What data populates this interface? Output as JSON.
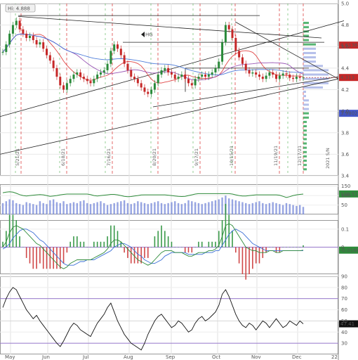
{
  "chart_data": {
    "type": "line",
    "x_axis": {
      "labels": [
        "May",
        "Jun",
        "Jul",
        "Aug",
        "Sep",
        "Oct",
        "Nov",
        "Dec",
        "22"
      ]
    },
    "price_panel": {
      "ylim": [
        3.4,
        5.0
      ],
      "y_ticks": [
        3.4,
        3.6,
        3.8,
        4.0,
        4.2,
        4.4,
        4.6,
        4.8,
        5.0
      ],
      "hi_label": "Hi: 4.888",
      "hi_value": 4.888,
      "hg_label": "HG",
      "hg_level": 4.64,
      "volume_profile_high_label": "4.6136",
      "last_price_label": "4.313",
      "volume_profile_low_label": "3.9802",
      "date_markers": [
        "5/21/21",
        "6/18/21",
        "7/16/21",
        "8/20/21",
        "9/17/21",
        "10/15/21",
        "11/19/21",
        "12/17/21"
      ],
      "faded_label": "2021 S/N",
      "close": [
        4.55,
        4.62,
        4.72,
        4.8,
        4.84,
        4.76,
        4.72,
        4.68,
        4.7,
        4.66,
        4.62,
        4.64,
        4.58,
        4.52,
        4.47,
        4.4,
        4.32,
        4.24,
        4.2,
        4.26,
        4.3,
        4.34,
        4.36,
        4.32,
        4.3,
        4.28,
        4.26,
        4.3,
        4.34,
        4.36,
        4.38,
        4.44,
        4.56,
        4.62,
        4.58,
        4.52,
        4.44,
        4.38,
        4.32,
        4.3,
        4.26,
        4.22,
        4.18,
        4.16,
        4.2,
        4.26,
        4.34,
        4.38,
        4.4,
        4.36,
        4.34,
        4.3,
        4.32,
        4.34,
        4.3,
        4.26,
        4.24,
        4.3,
        4.32,
        4.34,
        4.32,
        4.34,
        4.36,
        4.4,
        4.46,
        4.64,
        4.8,
        4.76,
        4.68,
        4.56,
        4.5,
        4.44,
        4.38,
        4.35,
        4.36,
        4.34,
        4.32,
        4.3,
        4.33,
        4.36,
        4.34,
        4.3,
        4.33,
        4.35,
        4.34,
        4.31,
        4.3,
        4.32,
        4.31,
        4.313
      ]
    },
    "volume_panel": {
      "y_ticks": [
        50,
        100,
        150
      ],
      "last_value_label": "108.51",
      "volume": [
        60,
        70,
        80,
        75,
        60,
        55,
        50,
        65,
        60,
        55,
        50,
        70,
        60,
        55,
        75,
        80,
        65,
        60,
        70,
        55,
        60,
        65,
        60,
        70,
        75,
        60,
        55,
        60,
        65,
        70,
        60,
        50,
        55,
        60,
        65,
        70,
        75,
        60,
        55,
        60,
        70,
        65,
        60,
        55,
        60,
        65,
        70,
        60,
        55,
        60,
        65,
        70,
        60,
        55,
        60,
        75,
        70,
        65,
        60,
        55,
        60,
        65,
        70,
        75,
        80,
        90,
        100,
        85,
        80,
        75,
        70,
        65,
        60,
        55,
        60,
        65,
        70,
        60,
        55,
        60,
        65,
        60,
        55,
        50,
        60,
        55,
        50,
        45,
        50,
        40
      ],
      "average": [
        115,
        118,
        120,
        118,
        112,
        105,
        100,
        98,
        100,
        102,
        104,
        105,
        104,
        100,
        96,
        98,
        100,
        104,
        106,
        108,
        108,
        108,
        108,
        108,
        108,
        108,
        105,
        100,
        98,
        100,
        102,
        104,
        106,
        106,
        104,
        100,
        96,
        94,
        95,
        98,
        100,
        103,
        104,
        104,
        104,
        104,
        104,
        104,
        104,
        102,
        100,
        98,
        96,
        95,
        96,
        100,
        104,
        108,
        110,
        110,
        110,
        110,
        110,
        110,
        110,
        110,
        110,
        110,
        108,
        104,
        100,
        98,
        98,
        100,
        102,
        104,
        104,
        104,
        104,
        104,
        104,
        104,
        102,
        96,
        90,
        94,
        100,
        104,
        106,
        108
      ]
    },
    "macd_panel": {
      "y_ticks": [
        0.1,
        0
      ],
      "last_value_label": "-0.0166",
      "macd": [
        0.0,
        0.03,
        0.08,
        0.11,
        0.12,
        0.11,
        0.1,
        0.08,
        0.06,
        0.04,
        0.02,
        0.01,
        -0.01,
        -0.03,
        -0.05,
        -0.07,
        -0.09,
        -0.11,
        -0.12,
        -0.11,
        -0.09,
        -0.08,
        -0.07,
        -0.07,
        -0.07,
        -0.07,
        -0.07,
        -0.06,
        -0.05,
        -0.04,
        -0.03,
        -0.01,
        0.02,
        0.04,
        0.04,
        0.03,
        0.01,
        -0.01,
        -0.03,
        -0.05,
        -0.07,
        -0.08,
        -0.09,
        -0.1,
        -0.09,
        -0.07,
        -0.05,
        -0.03,
        -0.02,
        -0.02,
        -0.02,
        -0.03,
        -0.03,
        -0.03,
        -0.04,
        -0.05,
        -0.05,
        -0.04,
        -0.03,
        -0.03,
        -0.03,
        -0.02,
        -0.02,
        -0.01,
        0.01,
        0.06,
        0.12,
        0.13,
        0.12,
        0.09,
        0.06,
        0.03,
        0.0,
        -0.01,
        -0.02,
        -0.02,
        -0.03,
        -0.03,
        -0.03,
        -0.02,
        -0.02,
        -0.03,
        -0.03,
        -0.02,
        -0.02,
        -0.02,
        -0.02,
        -0.02,
        -0.02,
        -0.0166
      ],
      "signal": [
        -0.01,
        0.0,
        0.02,
        0.05,
        0.07,
        0.09,
        0.1,
        0.1,
        0.09,
        0.08,
        0.06,
        0.04,
        0.03,
        0.01,
        -0.01,
        -0.03,
        -0.05,
        -0.07,
        -0.09,
        -0.1,
        -0.1,
        -0.1,
        -0.09,
        -0.08,
        -0.08,
        -0.07,
        -0.07,
        -0.07,
        -0.06,
        -0.05,
        -0.04,
        -0.03,
        -0.02,
        0.0,
        0.01,
        0.02,
        0.02,
        0.01,
        0.0,
        -0.02,
        -0.04,
        -0.05,
        -0.07,
        -0.08,
        -0.09,
        -0.09,
        -0.08,
        -0.07,
        -0.05,
        -0.04,
        -0.03,
        -0.03,
        -0.03,
        -0.03,
        -0.03,
        -0.04,
        -0.04,
        -0.04,
        -0.04,
        -0.04,
        -0.03,
        -0.03,
        -0.03,
        -0.02,
        -0.02,
        0.01,
        0.04,
        0.07,
        0.09,
        0.1,
        0.09,
        0.08,
        0.06,
        0.04,
        0.02,
        0.01,
        0.0,
        -0.01,
        -0.02,
        -0.02,
        -0.02,
        -0.02,
        -0.02,
        -0.02,
        -0.02,
        -0.02,
        -0.02,
        -0.02,
        -0.02,
        -0.02
      ]
    },
    "rsi_panel": {
      "ylim": [
        20,
        90
      ],
      "y_ticks": [
        30,
        40,
        50,
        60,
        70,
        80,
        90
      ],
      "overbought": 70,
      "oversold": 30,
      "last_value_label": "47.41",
      "rsi": [
        62,
        70,
        76,
        80,
        78,
        72,
        66,
        60,
        56,
        52,
        55,
        50,
        46,
        42,
        38,
        34,
        30,
        27,
        32,
        38,
        44,
        48,
        46,
        42,
        40,
        38,
        36,
        42,
        48,
        52,
        56,
        62,
        66,
        58,
        50,
        44,
        38,
        34,
        30,
        28,
        26,
        24,
        30,
        38,
        44,
        50,
        54,
        56,
        52,
        48,
        44,
        46,
        50,
        48,
        44,
        40,
        42,
        48,
        52,
        54,
        50,
        52,
        55,
        58,
        64,
        74,
        78,
        72,
        64,
        56,
        50,
        46,
        44,
        48,
        46,
        42,
        46,
        50,
        48,
        44,
        48,
        52,
        48,
        44,
        46,
        50,
        48,
        46,
        50,
        47.41
      ]
    }
  }
}
